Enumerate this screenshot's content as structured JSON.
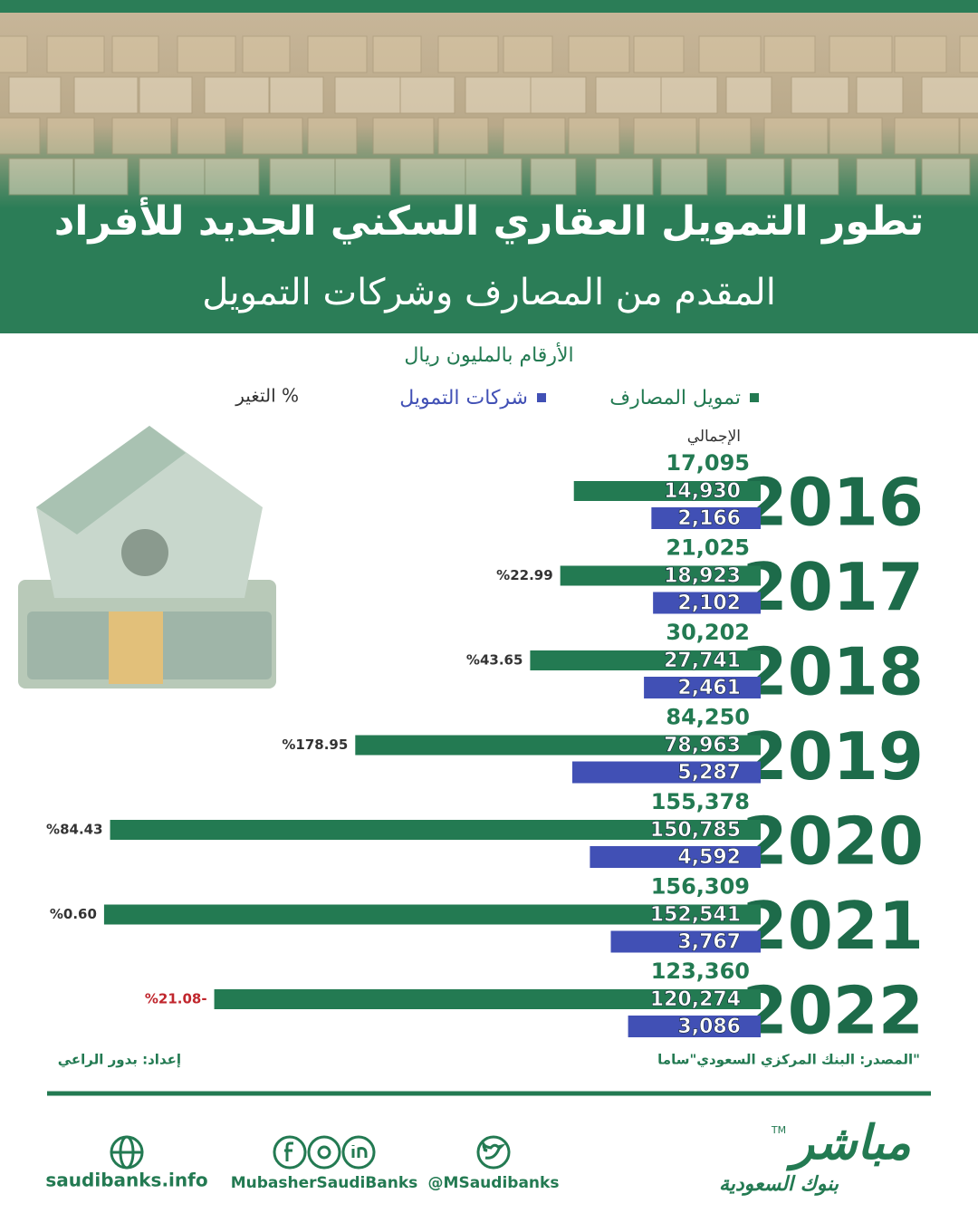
{
  "chart_data": {
    "type": "bar",
    "title": [
      "تطور التمويل العقاري السكني الجديد للأفراد",
      "المقدم من المصارف وشركات التمويل"
    ],
    "subtitle": "الأرقام بالمليون ريال",
    "categories": [
      "2016",
      "2017",
      "2018",
      "2019",
      "2020",
      "2021",
      "2022"
    ],
    "series": [
      {
        "name": "تمويل المصارف",
        "color": "#237a52",
        "values": [
          14930,
          18923,
          27741,
          78963,
          150785,
          152541,
          120274
        ],
        "value_labels": [
          "14,930",
          "18,923",
          "27,741",
          "78,963",
          "150,785",
          "152,541",
          "120,274"
        ]
      },
      {
        "name": "شركات التمويل",
        "color": "#4150b5",
        "values": [
          2166,
          2102,
          2461,
          5287,
          4592,
          3767,
          3086
        ],
        "value_labels": [
          "2,166",
          "2,102",
          "2,461",
          "5,287",
          "4,592",
          "3,767",
          "3,086"
        ]
      }
    ],
    "total": {
      "name": "الإجمالي",
      "color": "#237a52",
      "values": [
        17095,
        21025,
        30202,
        84250,
        155378,
        156309,
        123360
      ],
      "value_labels": [
        "17,095",
        "21,025",
        "30,202",
        "84,250",
        "155,378",
        "156,309",
        "123,360"
      ]
    },
    "change": {
      "name": "التغير %",
      "negative_color": "#c0262d",
      "color": "#333333",
      "values": [
        null,
        22.99,
        43.65,
        178.95,
        84.43,
        0.6,
        -21.08
      ],
      "value_labels": [
        null,
        "%22.99",
        "%43.65",
        "%178.95",
        "%84.43",
        "%0.60",
        "%21.08-"
      ]
    },
    "source": "المصدر: البنك المركزي السعودي\"ساما\"",
    "credit": "إعداد: بدور الراعي"
  },
  "footer": {
    "website": "saudibanks.info",
    "social": "MubasherSaudiBanks",
    "twitter": "@MSaudibanks",
    "logo": "مباشر",
    "logo_sub": "بنوك السعودية",
    "trademark": "TM"
  }
}
